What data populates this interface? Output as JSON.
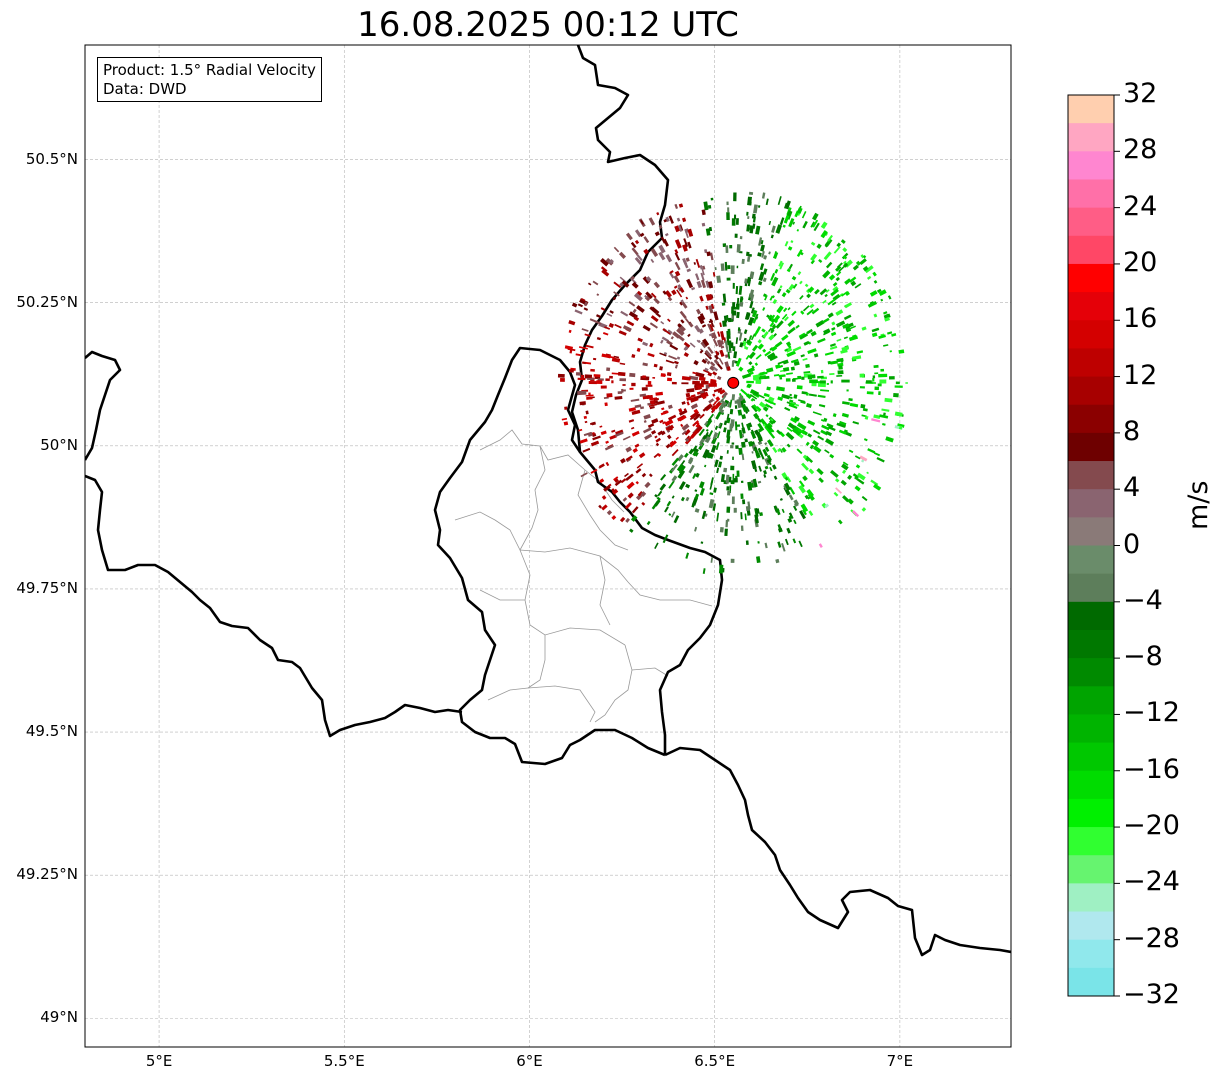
{
  "title": "16.08.2025 00:12 UTC",
  "info_box": {
    "product": "Product: 1.5° Radial Velocity",
    "data": "Data: DWD"
  },
  "colorbar": {
    "unit": "m/s",
    "min": -32,
    "max": 32,
    "ticks": [
      "32",
      "28",
      "24",
      "20",
      "16",
      "12",
      "8",
      "4",
      "0",
      "−4",
      "−8",
      "−12",
      "−16",
      "−20",
      "−24",
      "−28",
      "−32"
    ],
    "colors_top_to_bottom": [
      "#ffcfaf",
      "#ffa6c2",
      "#ff86d0",
      "#ff70a8",
      "#ff5d86",
      "#ff4766",
      "#ff0000",
      "#e50008",
      "#d40000",
      "#be0000",
      "#a70000",
      "#8b0000",
      "#6e0000",
      "#844a4e",
      "#8a6470",
      "#8a7a78",
      "#6a8c6a",
      "#5d7e5b",
      "#006a00",
      "#007800",
      "#008a00",
      "#00a400",
      "#00b400",
      "#00c800",
      "#00dc00",
      "#00f000",
      "#30ff30",
      "#66f46f",
      "#9ff0c3",
      "#b0e8ee",
      "#90e8ec",
      "#7ae4e8"
    ]
  },
  "axes": {
    "lat_labels": [
      "50.5°N",
      "50.25°N",
      "50°N",
      "49.75°N",
      "49.5°N",
      "49.25°N",
      "49°N"
    ],
    "lon_labels": [
      "5°E",
      "5.5°E",
      "6°E",
      "6.5°E",
      "7°E"
    ],
    "lat_range": [
      48.95,
      50.7
    ],
    "lon_range": [
      4.8,
      7.3
    ],
    "grid": true
  },
  "radar_site": {
    "lon": 6.55,
    "lat": 50.11,
    "color": "#ff0000"
  },
  "colors": {
    "border": "#000000",
    "district": "#999999",
    "grid": "#b5b5b5"
  }
}
